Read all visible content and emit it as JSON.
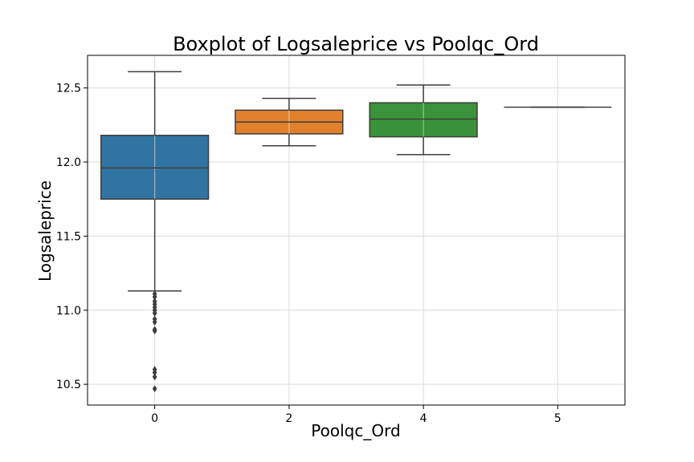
{
  "chart_data": {
    "type": "boxplot",
    "title": "Boxplot of Logsaleprice vs Poolqc_Ord",
    "xlabel": "Poolqc_Ord",
    "ylabel": "Logsaleprice",
    "ylim": [
      10.36,
      12.72
    ],
    "yticks": [
      "10.5",
      "11.0",
      "11.5",
      "12.0",
      "12.5"
    ],
    "grid": true,
    "categories": [
      "0",
      "2",
      "4",
      "5"
    ],
    "boxes": [
      {
        "category": "0",
        "color": "#3274a1",
        "whisker_low": 11.13,
        "q1": 11.75,
        "median": 11.96,
        "q3": 12.18,
        "whisker_high": 12.61,
        "outliers": [
          11.11,
          11.09,
          11.06,
          11.04,
          11.02,
          11.0,
          10.98,
          10.94,
          10.92,
          10.87,
          10.86,
          10.6,
          10.58,
          10.55,
          10.47
        ]
      },
      {
        "category": "2",
        "color": "#e1812c",
        "whisker_low": 12.11,
        "q1": 12.19,
        "median": 12.27,
        "q3": 12.35,
        "whisker_high": 12.43,
        "outliers": []
      },
      {
        "category": "4",
        "color": "#3a923a",
        "whisker_low": 12.05,
        "q1": 12.17,
        "median": 12.29,
        "q3": 12.4,
        "whisker_high": 12.52,
        "outliers": []
      },
      {
        "category": "5",
        "color": "#c03d3e",
        "whisker_low": 12.37,
        "q1": 12.37,
        "median": 12.37,
        "q3": 12.37,
        "whisker_high": 12.37,
        "outliers": []
      }
    ]
  }
}
